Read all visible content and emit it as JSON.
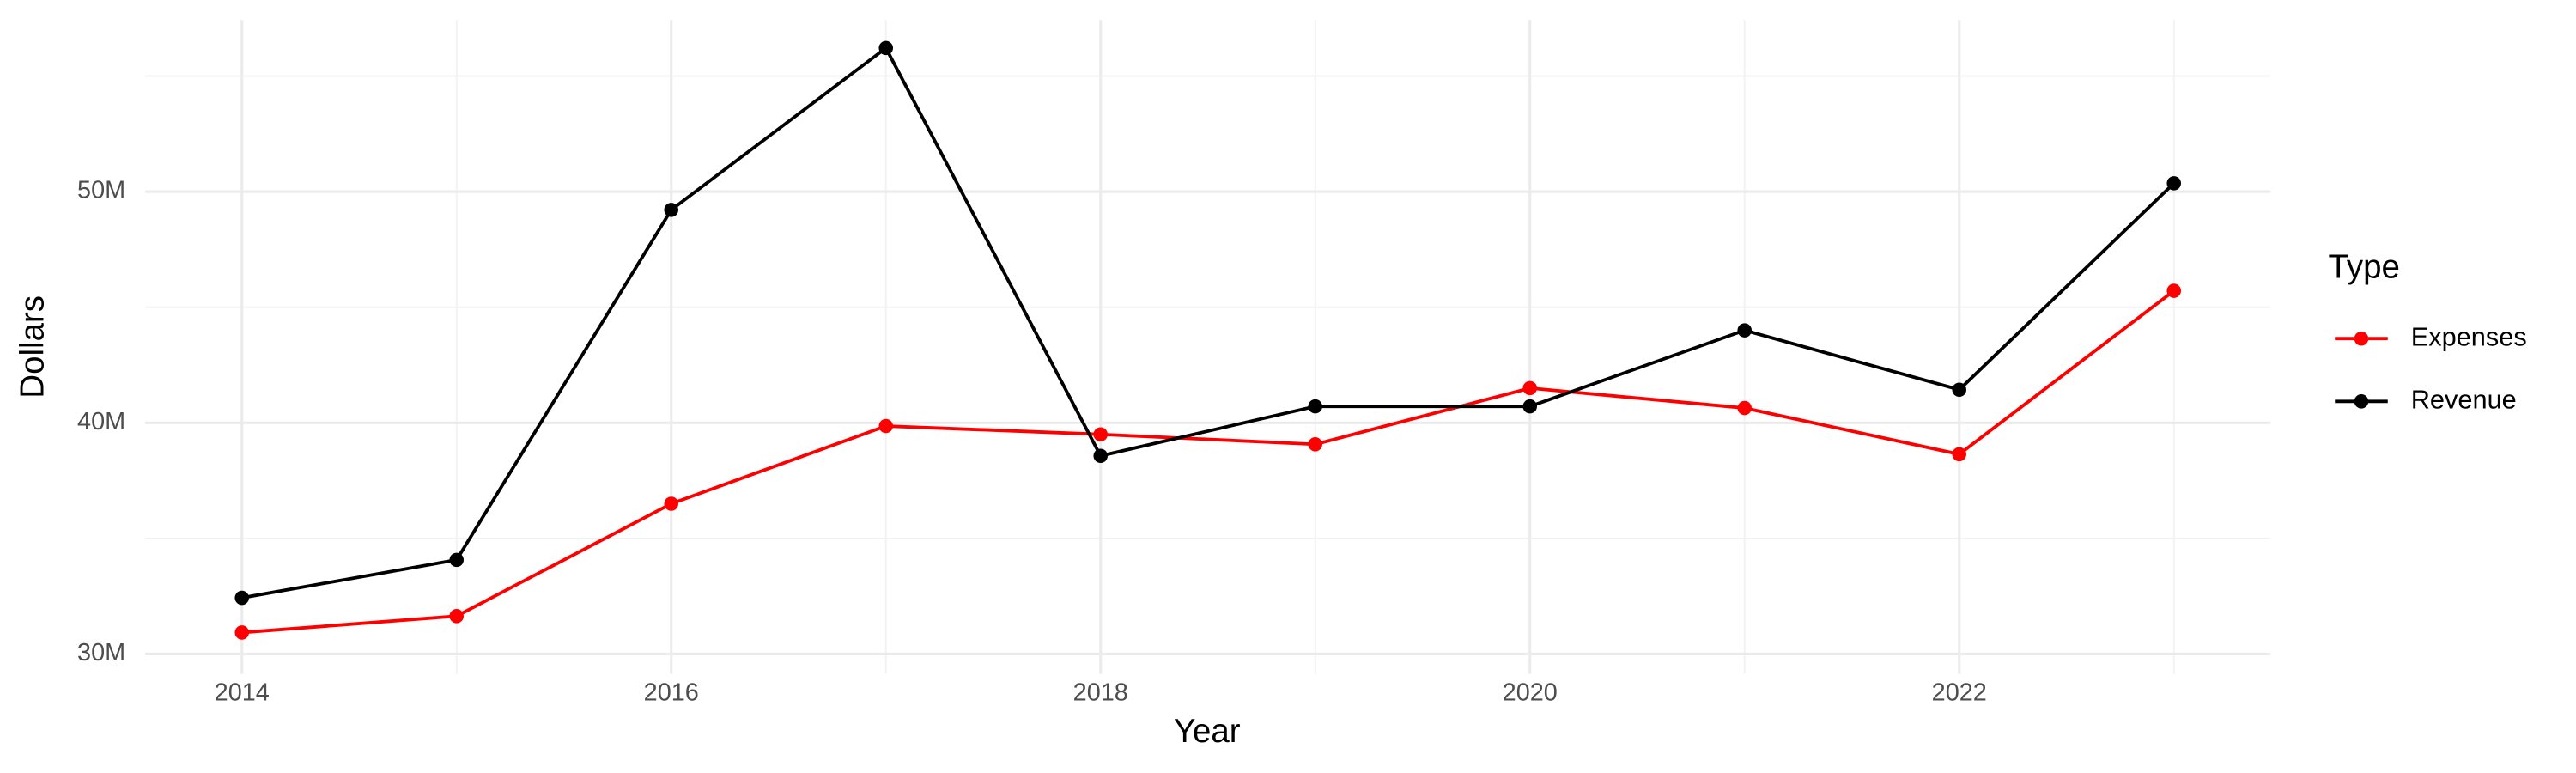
{
  "chart_data": {
    "type": "line",
    "x_label": "Year",
    "y_label": "Dollars",
    "x": [
      2014,
      2015,
      2016,
      2017,
      2018,
      2019,
      2020,
      2021,
      2022,
      2023
    ],
    "series": [
      {
        "name": "Expenses",
        "color": "#ff0000",
        "values": [
          30930000,
          31640000,
          36500000,
          39860000,
          39500000,
          39070000,
          41500000,
          40640000,
          38640000,
          45710000
        ]
      },
      {
        "name": "Revenue",
        "color": "#000000",
        "values": [
          32430000,
          34070000,
          49210000,
          56210000,
          38570000,
          40710000,
          40710000,
          44000000,
          41430000,
          50360000
        ]
      }
    ],
    "xlim": [
      2013.55,
      2023.45
    ],
    "xticks": [
      2014,
      2016,
      2018,
      2020,
      2022
    ],
    "ylim": [
      29140000,
      57430000
    ],
    "yticks": [
      {
        "value": 30000000,
        "label": "30M"
      },
      {
        "value": 40000000,
        "label": "40M"
      },
      {
        "value": 50000000,
        "label": "50M"
      }
    ],
    "grid": true,
    "legend_title": "Type",
    "legend_position": "right"
  }
}
